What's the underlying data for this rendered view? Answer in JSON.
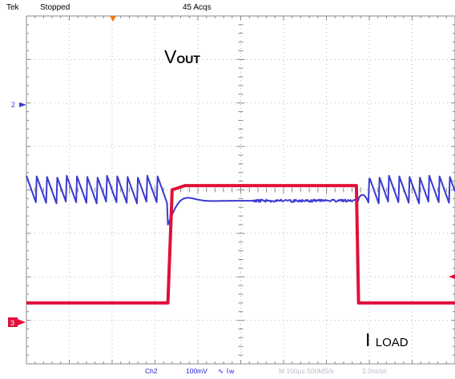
{
  "header": {
    "brand": "Tek",
    "status": "Stopped",
    "acquisitions": "45 Acqs"
  },
  "footer": {
    "channel": "Ch2",
    "scale": "100mV",
    "timebase": "M 100µs 500MS/s",
    "resolution": "2.0ns/pt"
  },
  "labels": {
    "vout_main": "V",
    "vout_sub": "OUT",
    "iload_main": "I",
    "iload_sub": "LOAD"
  },
  "markers": {
    "ch2": "2",
    "ch3": "3"
  },
  "colors": {
    "ch2_trace": "#3a3ad0",
    "ch3_trace": "#e0103a",
    "trigger_marker": "#f07a10",
    "grid": "#b7b7b7",
    "frame": "#8a8a8a",
    "footer_text": "#2222cc"
  },
  "chart_data": {
    "type": "line",
    "title": "",
    "grid": true,
    "x_divisions": 10,
    "y_divisions": 8,
    "x_unit": "ms",
    "xlim": [
      0,
      1.0
    ],
    "series": [
      {
        "name": "VOUT",
        "channel": "Ch2",
        "unit": "mV",
        "ylim": [
          -400,
          400
        ],
        "baseline_mv": 0,
        "ripple_pp_mv": 65,
        "ripple_period_ms": 0.0235,
        "events": [
          {
            "t_ms": 0.0,
            "y_mv": 0,
            "note": "ripple around reference"
          },
          {
            "t_ms": 0.33,
            "y_mv": 0,
            "note": "load step applied"
          },
          {
            "t_ms": 0.345,
            "y_mv": -70,
            "note": "undershoot"
          },
          {
            "t_ms": 0.365,
            "y_mv": 28,
            "note": "overshoot"
          },
          {
            "t_ms": 0.45,
            "y_mv": -25,
            "note": "flat regulated level"
          },
          {
            "t_ms": 1.15,
            "y_mv": -25,
            "note": "load release"
          },
          {
            "t_ms": 1.7,
            "y_mv": 0,
            "note": "ripple resumes"
          }
        ]
      },
      {
        "name": "ILOAD",
        "channel": "Ch3",
        "unit": "div",
        "ylim": [
          -4,
          4
        ],
        "points": [
          {
            "t_ms": 0.0,
            "y": 2.6
          },
          {
            "t_ms": 0.33,
            "y": 2.6
          },
          {
            "t_ms": 0.34,
            "y": 0.0
          },
          {
            "t_ms": 0.37,
            "y": -0.1
          },
          {
            "t_ms": 1.14,
            "y": -0.1
          },
          {
            "t_ms": 1.15,
            "y": 2.6
          },
          {
            "t_ms": 1.7,
            "y": 2.6
          }
        ]
      }
    ]
  }
}
